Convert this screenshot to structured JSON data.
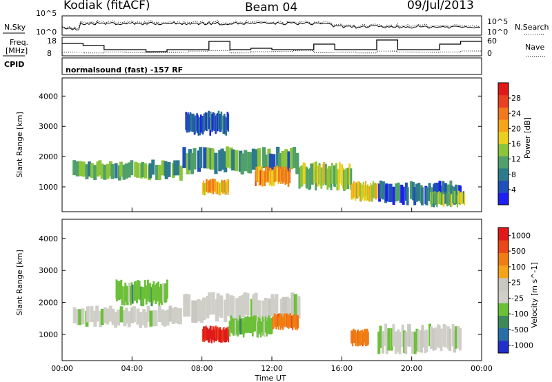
{
  "header": {
    "title": "Kodiak (fitACF)",
    "beam": "Beam 04",
    "date": "09/Jul/2013"
  },
  "params": {
    "nsky_label": "N.Sky",
    "nsearch_label": "N.Search",
    "freq_label": "Freq.",
    "freq_unit": "[MHz]",
    "nave_label": "Nave",
    "cpid_label": "CPID",
    "cpid_value": "normalsound (fast) -157 RF",
    "noise_ticks_left": [
      "10^5",
      "10^0"
    ],
    "noise_ticks_right": [
      "10^5",
      "10^0"
    ],
    "freq_ticks": [
      "18",
      "8"
    ],
    "nave_ticks": [
      "60",
      "0"
    ]
  },
  "chart_data": [
    {
      "type": "heatmap",
      "title": "",
      "xlabel": "Time UT",
      "ylabel": "Slant Range [km]",
      "x_ticks": [
        "00:00",
        "04:00",
        "08:00",
        "12:00",
        "16:00",
        "20:00",
        "00:00"
      ],
      "y_ticks": [
        "1000",
        "2000",
        "3000",
        "4000"
      ],
      "xlim_hours": [
        0,
        24
      ],
      "ylim_km": [
        180,
        4600
      ],
      "colorbar": {
        "label": "Power [dB]",
        "ticks": [
          "4",
          "8",
          "12",
          "16",
          "20",
          "24",
          "28"
        ],
        "colors": [
          "#1f1ff0",
          "#1f4fb8",
          "#2d7a8a",
          "#4fa06a",
          "#8cc43a",
          "#e8d020",
          "#f4a41a",
          "#f0781e",
          "#e84020",
          "#e01818"
        ]
      },
      "features": [
        {
          "t0": 0.6,
          "t1": 6.8,
          "r0": 1300,
          "r1": 1800,
          "level": 0.35
        },
        {
          "t0": 6.8,
          "t1": 13.5,
          "r0": 1500,
          "r1": 2200,
          "level": 0.3
        },
        {
          "t0": 8.0,
          "t1": 9.5,
          "r0": 800,
          "r1": 1200,
          "level": 0.65
        },
        {
          "t0": 11.0,
          "t1": 13.0,
          "r0": 1100,
          "r1": 1600,
          "level": 0.7
        },
        {
          "t0": 7.0,
          "t1": 9.5,
          "r0": 2800,
          "r1": 3400,
          "level": 0.15
        },
        {
          "t0": 13.5,
          "t1": 16.5,
          "r0": 1000,
          "r1": 1700,
          "level": 0.45
        },
        {
          "t0": 16.5,
          "t1": 18.0,
          "r0": 600,
          "r1": 1100,
          "level": 0.55
        },
        {
          "t0": 18.0,
          "t1": 22.8,
          "r0": 500,
          "r1": 1100,
          "level": 0.2
        },
        {
          "t0": 21.0,
          "t1": 23.0,
          "r0": 400,
          "r1": 800,
          "level": 0.4
        }
      ]
    },
    {
      "type": "heatmap",
      "title": "",
      "xlabel": "Time UT",
      "ylabel": "Slant Range [km]",
      "x_ticks": [
        "00:00",
        "04:00",
        "08:00",
        "12:00",
        "16:00",
        "20:00",
        "00:00"
      ],
      "y_ticks": [
        "1000",
        "2000",
        "3000",
        "4000"
      ],
      "xlim_hours": [
        0,
        24
      ],
      "ylim_km": [
        180,
        4600
      ],
      "colorbar": {
        "label": "Velocity [m s^-1]",
        "ticks": [
          "1000",
          "500",
          "100",
          "25",
          "-25",
          "-100",
          "-500",
          "-1000"
        ],
        "colors": [
          "#2030c8",
          "#2a6ea8",
          "#3c8a5a",
          "#6cc038",
          "#cfcfc8",
          "#c8c8c0",
          "#f4a41a",
          "#f07c14",
          "#e84818",
          "#e01a1a"
        ]
      },
      "features": [
        {
          "t0": 0.6,
          "t1": 6.8,
          "r0": 1300,
          "r1": 1800,
          "vel": "ground"
        },
        {
          "t0": 6.8,
          "t1": 13.5,
          "r0": 1500,
          "r1": 2200,
          "vel": "ground"
        },
        {
          "t0": 8.0,
          "t1": 9.5,
          "r0": 800,
          "r1": 1200,
          "vel": "neg_strong"
        },
        {
          "t0": 9.5,
          "t1": 12.0,
          "r0": 1000,
          "r1": 1500,
          "vel": "pos_med"
        },
        {
          "t0": 12.0,
          "t1": 13.5,
          "r0": 1200,
          "r1": 1600,
          "vel": "neg_med"
        },
        {
          "t0": 3.0,
          "t1": 6.0,
          "r0": 2000,
          "r1": 2600,
          "vel": "pos_med"
        },
        {
          "t0": 16.5,
          "t1": 17.5,
          "r0": 700,
          "r1": 1100,
          "vel": "neg_med"
        },
        {
          "t0": 18.0,
          "t1": 22.8,
          "r0": 500,
          "r1": 1200,
          "vel": "ground"
        }
      ]
    }
  ]
}
